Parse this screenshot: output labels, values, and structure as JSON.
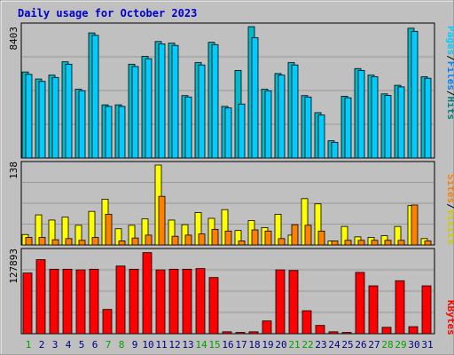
{
  "chart_data": {
    "type": "bar",
    "title": "Daily usage for October 2023",
    "days": [
      "1",
      "2",
      "3",
      "4",
      "5",
      "6",
      "7",
      "8",
      "9",
      "10",
      "11",
      "12",
      "13",
      "14",
      "15",
      "16",
      "17",
      "18",
      "19",
      "20",
      "21",
      "22",
      "23",
      "24",
      "25",
      "26",
      "27",
      "28",
      "29",
      "30",
      "31"
    ],
    "weekend_days": [
      "1",
      "7",
      "8",
      "14",
      "15",
      "21",
      "22",
      "28",
      "29"
    ],
    "panels": [
      {
        "id": "pages-files-hits",
        "max_label": "8403",
        "ymax": 8403,
        "series": [
          {
            "name": "Hits",
            "color": "#00bbcc",
            "values": [
              5500,
              5050,
              5300,
              6150,
              4400,
              8000,
              3400,
              3400,
              6000,
              6500,
              7450,
              7350,
              3990,
              6100,
              7400,
              3300,
              5600,
              8400,
              4400,
              5400,
              6100,
              3990,
              2900,
              1100,
              3950,
              5720,
              5300,
              4100,
              4650,
              8300,
              5200
            ]
          },
          {
            "name": "Files",
            "color": "#00ccff",
            "values": [
              5350,
              4900,
              5150,
              6000,
              4300,
              7850,
              3300,
              3300,
              5850,
              6350,
              7300,
              7200,
              3900,
              5950,
              7250,
              3200,
              3450,
              7700,
              4300,
              5300,
              5950,
              3900,
              2750,
              1000,
              3850,
              5600,
              5200,
              4000,
              4550,
              8100,
              5100
            ]
          },
          {
            "name": "Pages",
            "color": "#0060ff",
            "values": []
          }
        ]
      },
      {
        "id": "sites-visits",
        "max_label": "138",
        "ymax": 138,
        "series": [
          {
            "name": "Visits",
            "color": "#ffff00",
            "values": [
              18,
              52,
              43,
              48,
              34,
              58,
              79,
              28,
              34,
              45,
              138,
              43,
              35,
              56,
              46,
              61,
              25,
              42,
              30,
              53,
              17,
              80,
              71,
              7,
              32,
              14,
              13,
              16,
              32,
              68,
              11
            ]
          },
          {
            "name": "Sites",
            "color": "#ff8000",
            "values": [
              13,
              13,
              9,
              11,
              8,
              13,
              53,
              7,
              12,
              17,
              84,
              15,
              17,
              19,
              27,
              24,
              7,
              26,
              24,
              11,
              35,
              34,
              24,
              7,
              8,
              8,
              8,
              8,
              8,
              69,
              7
            ]
          }
        ]
      },
      {
        "id": "kbytes",
        "max_label": "127893",
        "ymax": 127893,
        "series": [
          {
            "name": "KBytes",
            "color": "#ff0000",
            "values": [
              95000,
              116000,
              101000,
              101000,
              100000,
              101000,
              38000,
              106000,
              101000,
              127000,
              100000,
              101000,
              101000,
              102000,
              88000,
              3000,
              2000,
              3000,
              20000,
              100000,
              99000,
              36000,
              13000,
              3000,
              2000,
              96000,
              75000,
              10000,
              83000,
              11000,
              75000
            ]
          }
        ]
      }
    ]
  },
  "legend": {
    "panel1": [
      {
        "text": "Pages",
        "color": "#00ccff"
      },
      {
        "text": "/",
        "color": "#000000"
      },
      {
        "text": "Files",
        "color": "#0080ff"
      },
      {
        "text": "/",
        "color": "#000000"
      },
      {
        "text": "Hits",
        "color": "#008080"
      }
    ],
    "panel2": [
      {
        "text": "Sites",
        "color": "#ff8000"
      },
      {
        "text": "/",
        "color": "#000000"
      },
      {
        "text": "Visits",
        "color": "#cccc00"
      }
    ],
    "panel3": [
      {
        "text": "KBytes",
        "color": "#ff0000"
      }
    ]
  },
  "colors": {
    "background": "#c0c0c0",
    "title": "#0000cc",
    "weekday_label": "#000080",
    "weekend_label": "#00a000",
    "gridline": "#999999"
  }
}
